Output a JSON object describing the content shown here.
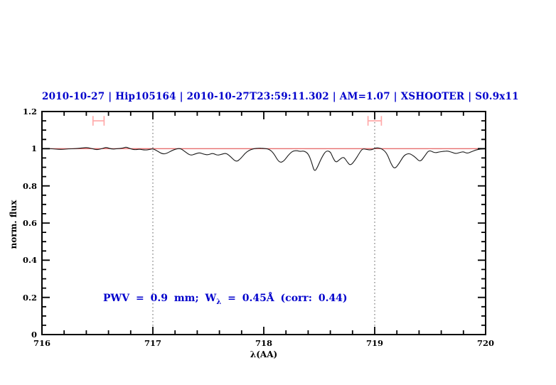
{
  "chart_data": {
    "type": "line",
    "title": "2010-10-27 | Hip105164 | 2010-10-27T23:59:11.302 | AM=1.07 | XSHOOTER | S0.9x11",
    "xlabel": "λ(AA)",
    "ylabel": "norm. flux",
    "xlim": [
      716,
      720
    ],
    "ylim": [
      0,
      1.2
    ],
    "x_ticks": [
      {
        "v": 716,
        "label": "716"
      },
      {
        "v": 717,
        "label": "717"
      },
      {
        "v": 718,
        "label": "718"
      },
      {
        "v": 719,
        "label": "719"
      },
      {
        "v": 720,
        "label": "720"
      }
    ],
    "x_minor_step": 0.2,
    "y_ticks": [
      {
        "v": 0,
        "label": "0"
      },
      {
        "v": 0.2,
        "label": "0.2"
      },
      {
        "v": 0.4,
        "label": "0.4"
      },
      {
        "v": 0.6,
        "label": "0.6"
      },
      {
        "v": 0.8,
        "label": "0.8"
      },
      {
        "v": 1,
        "label": "1"
      },
      {
        "v": 1.2,
        "label": "1.2"
      }
    ],
    "y_minor_step": 0.05,
    "grid": "off",
    "dotted_guides_x": [
      717,
      719
    ],
    "reference_line_y": 1.0,
    "band_markers": [
      {
        "x": 716.51,
        "halfwidth": 0.05,
        "y": 1.15,
        "cap_halfheight": 0.026
      },
      {
        "x": 719.0,
        "halfwidth": 0.06,
        "y": 1.15,
        "cap_halfheight": 0.026
      }
    ],
    "annotation": {
      "prefix": "PWV = 0.9 mm; W",
      "sub": "λ",
      "suffix": " = 0.45Å (corr: 0.44)"
    },
    "colors": {
      "accent_blue": "#0000cc",
      "reference_red": "#e87070",
      "marker_pink": "#ffaaaa",
      "spectrum_black": "#1a1a1a",
      "guide_gray": "#555555"
    },
    "series": [
      {
        "name": "spectrum",
        "x": [
          716.0,
          716.06,
          716.12,
          716.18,
          716.24,
          716.3,
          716.36,
          716.41,
          716.46,
          716.5,
          716.55,
          716.58,
          716.63,
          716.68,
          716.73,
          716.76,
          716.8,
          716.84,
          716.88,
          716.93,
          716.97,
          717.0,
          717.04,
          717.09,
          717.13,
          717.17,
          717.21,
          717.25,
          717.29,
          717.34,
          717.38,
          717.42,
          717.46,
          717.5,
          717.54,
          717.58,
          717.62,
          717.66,
          717.7,
          717.75,
          717.79,
          717.83,
          717.87,
          717.91,
          717.95,
          718.0,
          718.05,
          718.09,
          718.14,
          718.18,
          718.22,
          718.26,
          718.3,
          718.33,
          718.36,
          718.4,
          718.43,
          718.455,
          718.48,
          718.52,
          718.56,
          718.6,
          718.62,
          718.65,
          718.68,
          718.72,
          718.75,
          718.78,
          718.82,
          718.86,
          718.89,
          718.93,
          718.97,
          719.0,
          719.03,
          719.07,
          719.11,
          719.15,
          719.18,
          719.22,
          719.26,
          719.3,
          719.33,
          719.37,
          719.41,
          719.45,
          719.49,
          719.54,
          719.58,
          719.62,
          719.66,
          719.7,
          719.73,
          719.77,
          719.8,
          719.83,
          719.87,
          719.91,
          719.95,
          720.0
        ],
        "y": [
          1.0,
          1.001,
          0.998,
          0.996,
          0.999,
          1.0,
          1.004,
          1.007,
          0.999,
          0.994,
          1.002,
          1.008,
          0.997,
          1.0,
          1.003,
          1.01,
          0.999,
          0.994,
          0.998,
          0.992,
          0.996,
          1.0,
          0.988,
          0.97,
          0.976,
          0.99,
          0.999,
          1.002,
          0.984,
          0.963,
          0.972,
          0.979,
          0.97,
          0.966,
          0.977,
          0.964,
          0.97,
          0.977,
          0.958,
          0.928,
          0.945,
          0.975,
          0.993,
          1.0,
          1.003,
          1.002,
          0.998,
          0.975,
          0.924,
          0.932,
          0.965,
          0.988,
          0.99,
          0.985,
          0.989,
          0.975,
          0.93,
          0.876,
          0.895,
          0.95,
          0.99,
          0.985,
          0.955,
          0.924,
          0.94,
          0.958,
          0.93,
          0.908,
          0.935,
          0.975,
          1.001,
          0.995,
          0.993,
          1.002,
          1.006,
          0.998,
          0.975,
          0.915,
          0.89,
          0.92,
          0.962,
          0.975,
          0.97,
          0.952,
          0.928,
          0.96,
          0.994,
          0.977,
          0.982,
          0.986,
          0.988,
          0.98,
          0.973,
          0.98,
          0.985,
          0.974,
          0.983,
          0.993,
          0.998,
          1.0
        ]
      }
    ]
  }
}
